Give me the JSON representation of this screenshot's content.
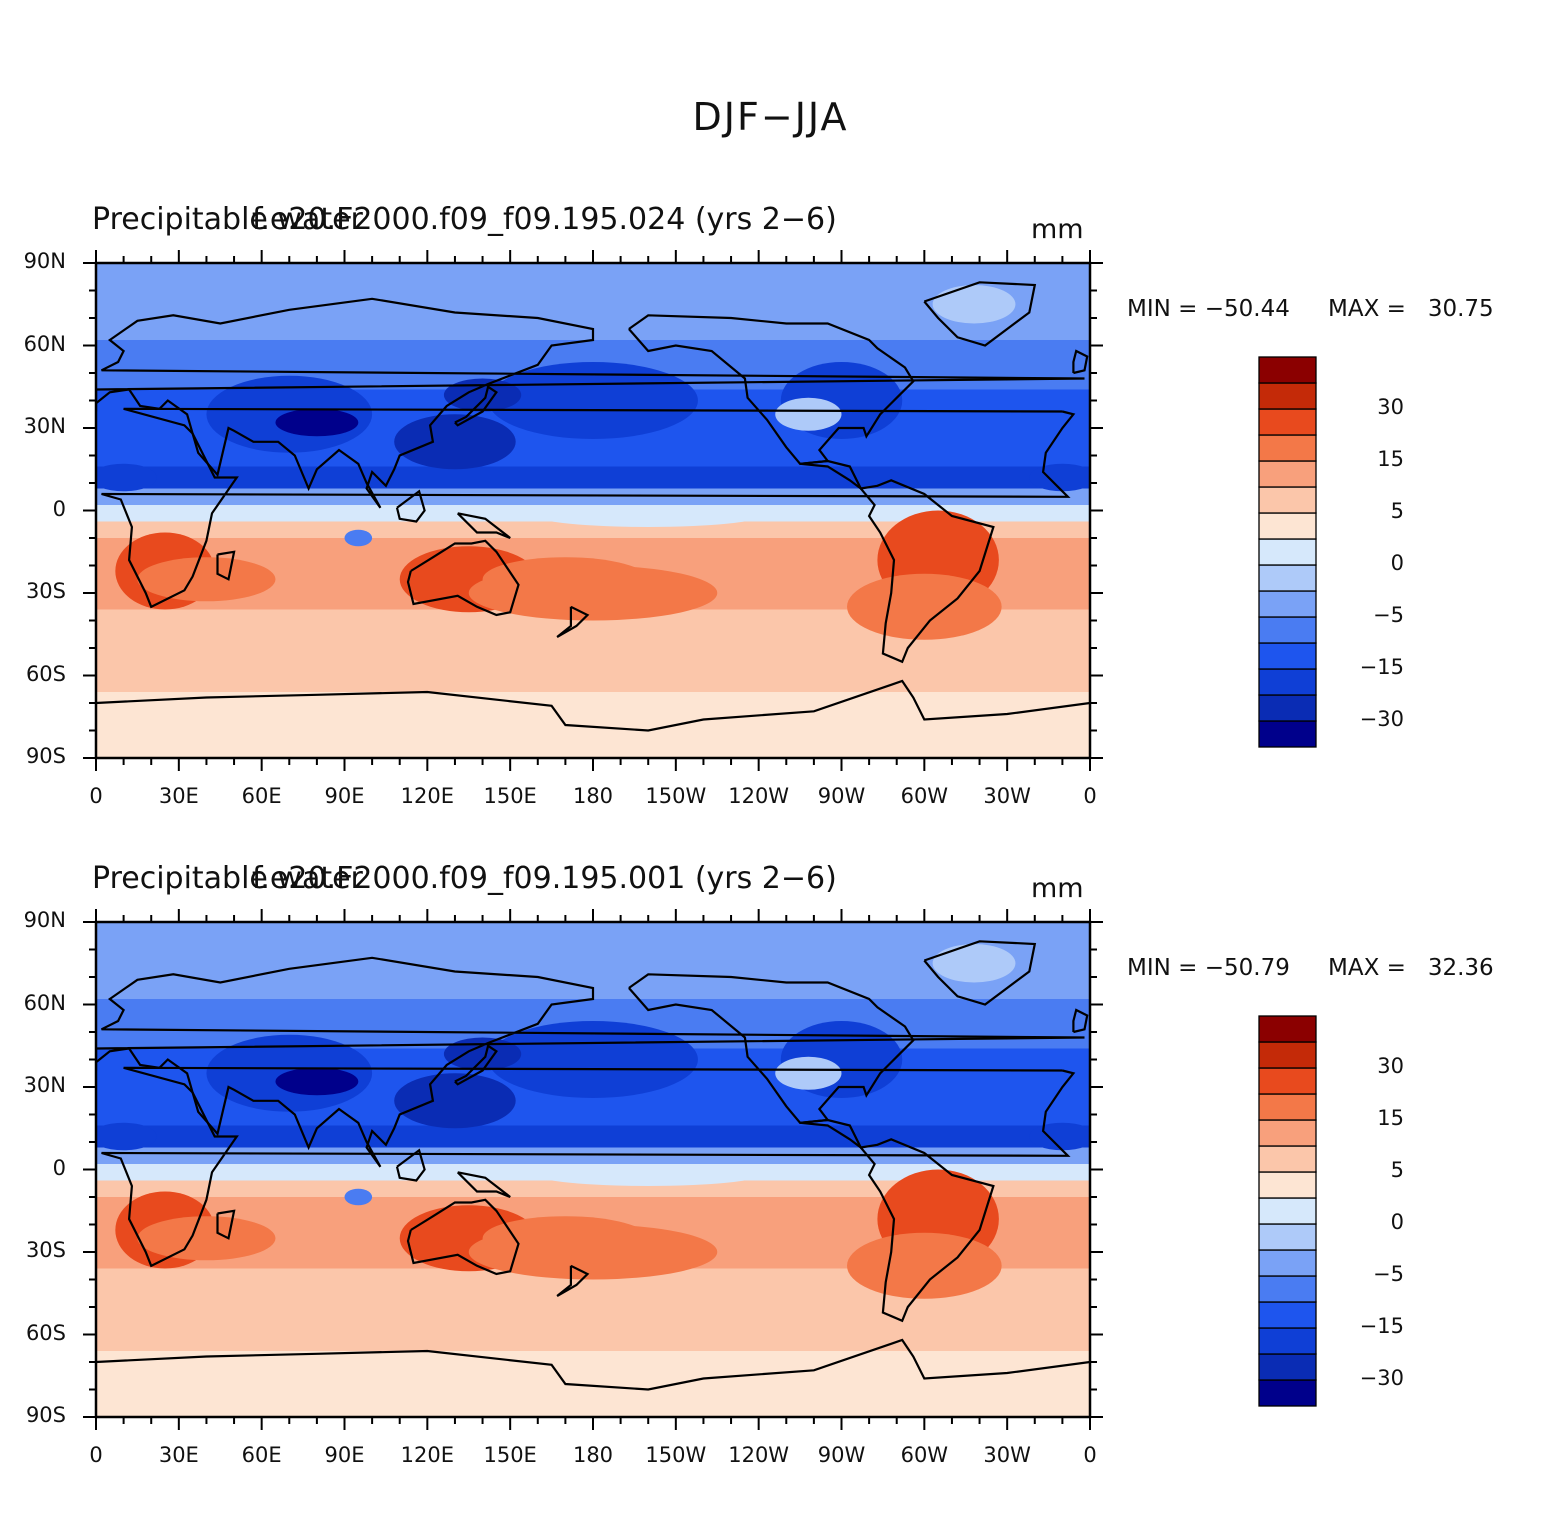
{
  "figure_title": "DJF−JJA",
  "colors": {
    "levels": [
      "#00008b",
      "#0a2cb4",
      "#0f3fd6",
      "#1e55ee",
      "#4a7cf2",
      "#7aa2f6",
      "#aecaf9",
      "#d6e8fb",
      "#fde5d3",
      "#fbc6aa",
      "#f8a07c",
      "#f37848",
      "#e84a1e",
      "#c42a08",
      "#8b0000"
    ],
    "coast": "#000000",
    "frame": "#000000"
  },
  "colorbar_labels": [
    "30",
    "15",
    "5",
    "0",
    "−5",
    "−15",
    "−30"
  ],
  "lat_labels": [
    "90N",
    "60N",
    "30N",
    "0",
    "30S",
    "60S",
    "90S"
  ],
  "lon_labels": [
    "0",
    "30E",
    "60E",
    "90E",
    "120E",
    "150E",
    "180",
    "150W",
    "120W",
    "90W",
    "60W",
    "30W",
    "0"
  ],
  "panels": [
    {
      "title_left": "Precipitable water",
      "title_center": "f.e20.F2000.f09_f09.195.024 (yrs 2−6)",
      "units": "mm",
      "min_label": "MIN = −50.44",
      "max_label": "MAX =   30.75"
    },
    {
      "title_left": "Precipitable water",
      "title_center": "f.e20.F2000.f09_f09.195.001 (yrs 2−6)",
      "units": "mm",
      "min_label": "MIN = −50.79",
      "max_label": "MAX =   32.36"
    }
  ]
}
